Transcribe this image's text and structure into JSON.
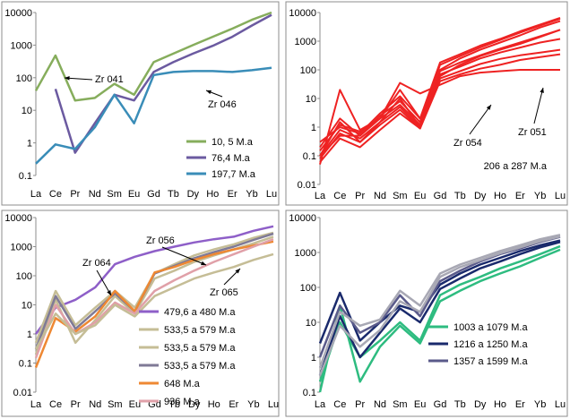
{
  "chart_data": [
    {
      "type": "line",
      "panel": "top-left",
      "title": "",
      "xlabel": "",
      "ylabel": "",
      "yscale": "log",
      "ylim": [
        0.1,
        10000
      ],
      "y_tick_labels": [
        "0.1",
        "1",
        "10",
        "100",
        "1000",
        "10000"
      ],
      "categories": [
        "La",
        "Ce",
        "Pr",
        "Nd",
        "Sm",
        "Eu",
        "Gd",
        "Tb",
        "Dy",
        "Ho",
        "Er",
        "Yb",
        "Lu"
      ],
      "legend_position": "bottom-right",
      "series": [
        {
          "name": "10, 5 M.a",
          "color": "#86ad5c",
          "values": [
            40,
            480,
            20,
            24,
            65,
            30,
            300,
            550,
            1000,
            1800,
            3200,
            6000,
            10000
          ]
        },
        {
          "name": "76,4 M.a",
          "color": "#6b5aa0",
          "values": [
            null,
            45,
            0.5,
            4,
            30,
            20,
            150,
            300,
            550,
            950,
            1800,
            4000,
            8500
          ]
        },
        {
          "name": "197,7 M.a",
          "color": "#3a8db8",
          "values": [
            0.23,
            0.9,
            0.65,
            3,
            30,
            4,
            120,
            150,
            160,
            160,
            150,
            170,
            200
          ]
        }
      ],
      "annotations": [
        "Zr 041",
        "Zr 046"
      ]
    },
    {
      "type": "line",
      "panel": "top-right",
      "title": "",
      "yscale": "log",
      "ylim": [
        0.01,
        10000
      ],
      "y_tick_labels": [
        "0.01",
        "0.1",
        "1",
        "10",
        "100",
        "1000",
        "10000"
      ],
      "categories": [
        "La",
        "Ce",
        "Pr",
        "Nd",
        "Sm",
        "Eu",
        "Gd",
        "Tb",
        "Dy",
        "Ho",
        "Er",
        "Yb",
        "Lu"
      ],
      "caption": "206 a 287 M.a",
      "series": [
        {
          "name": "",
          "color": "#ee2222",
          "values": [
            0.05,
            20,
            0.8,
            2,
            20,
            2,
            60,
            150,
            300,
            500,
            800,
            1400,
            2500
          ]
        },
        {
          "name": "",
          "color": "#ee2222",
          "values": [
            0.1,
            1.5,
            0.3,
            1.5,
            10,
            1,
            100,
            250,
            500,
            900,
            1600,
            3000,
            5000
          ]
        },
        {
          "name": "",
          "color": "#ee2222",
          "values": [
            0.2,
            2,
            0.5,
            2.5,
            8,
            1.5,
            150,
            300,
            600,
            1100,
            2000,
            3500,
            6000
          ]
        },
        {
          "name": "",
          "color": "#ee2222",
          "values": [
            0.3,
            1,
            0.6,
            3,
            12,
            2,
            180,
            350,
            700,
            1200,
            2200,
            3800,
            6500
          ]
        },
        {
          "name": "",
          "color": "#ee2222",
          "values": [
            0.15,
            1.2,
            0.7,
            2,
            6,
            1.2,
            90,
            180,
            320,
            550,
            900,
            1500,
            2500
          ]
        },
        {
          "name": "",
          "color": "#ee2222",
          "values": [
            0.1,
            0.8,
            0.4,
            1.5,
            5,
            1,
            70,
            130,
            250,
            400,
            600,
            900,
            1200
          ]
        },
        {
          "name": "",
          "color": "#ee2222",
          "values": [
            0.08,
            0.6,
            0.3,
            1.2,
            4,
            0.9,
            50,
            90,
            160,
            240,
            320,
            400,
            500
          ]
        },
        {
          "name": "",
          "color": "#ee2222",
          "values": [
            0.06,
            0.4,
            0.2,
            0.8,
            3,
            0.9,
            40,
            70,
            110,
            150,
            220,
            280,
            350
          ]
        },
        {
          "name": "",
          "color": "#ee2222",
          "values": [
            0.1,
            0.5,
            0.5,
            2,
            35,
            15,
            30,
            60,
            80,
            90,
            100,
            100,
            100
          ]
        }
      ],
      "annotations": [
        "Zr 054",
        "Zr 051"
      ]
    },
    {
      "type": "line",
      "panel": "bottom-left",
      "title": "",
      "yscale": "log",
      "ylim": [
        0.01,
        10000
      ],
      "y_tick_labels": [
        "0.01",
        "0.1",
        "1",
        "10",
        "100",
        "1000",
        "10000"
      ],
      "categories": [
        "La",
        "Ce",
        "Pr",
        "Nd",
        "Sm",
        "Eu",
        "Gd",
        "Tb",
        "Dy",
        "Ho",
        "Er",
        "Yb",
        "Lu"
      ],
      "legend_position": "bottom-right",
      "series": [
        {
          "name": "479,6 a 480 M.a",
          "color": "#8e5fc8",
          "values": [
            1,
            8,
            15,
            40,
            250,
            450,
            700,
            1000,
            1400,
            1800,
            2200,
            3500,
            5000
          ]
        },
        {
          "name": "533,5 a 579 M.a",
          "color": "#c5bd96",
          "values": [
            0.5,
            30,
            2,
            8,
            30,
            8,
            120,
            250,
            500,
            800,
            1200,
            2000,
            3000
          ]
        },
        {
          "name": "533,5 a 579 M.a",
          "color": "#c5bd96",
          "values": [
            0.2,
            15,
            0.5,
            3,
            20,
            5,
            80,
            150,
            300,
            500,
            800,
            1300,
            2200
          ]
        },
        {
          "name": "533,5 a 579 M.a",
          "color": "#7f7a96",
          "values": [
            0.3,
            20,
            1.5,
            6,
            25,
            6,
            120,
            220,
            400,
            650,
            1000,
            1700,
            2800
          ]
        },
        {
          "name": "648 M.a",
          "color": "#ee8833",
          "values": [
            0.07,
            3.5,
            1.2,
            4,
            30,
            6,
            130,
            200,
            350,
            550,
            800,
            1100,
            1500
          ]
        },
        {
          "name": "936 M.a",
          "color": "#e0a0a8",
          "values": [
            0.15,
            10,
            1,
            2.5,
            12,
            5,
            30,
            70,
            150,
            300,
            550,
            1000,
            1800
          ]
        },
        {
          "name": "",
          "color": "#c5bd96",
          "values": [
            0.3,
            5,
            1,
            2,
            10,
            4,
            20,
            40,
            80,
            130,
            200,
            350,
            550
          ]
        }
      ],
      "annotations": [
        "Zr 056",
        "Zr 064",
        "Zr 065"
      ]
    },
    {
      "type": "line",
      "panel": "bottom-right",
      "title": "",
      "yscale": "log",
      "ylim": [
        0.1,
        10000
      ],
      "y_tick_labels": [
        "0.1",
        "1",
        "10",
        "100",
        "1000",
        "10000"
      ],
      "categories": [
        "La",
        "Ce",
        "Pr",
        "Nd",
        "Sm",
        "Eu",
        "Gd",
        "Tb",
        "Dy",
        "Ho",
        "Er",
        "Yb",
        "Lu"
      ],
      "legend_position": "bottom-right",
      "series": [
        {
          "name": "1003 a 1079 M.a",
          "color": "#2ebc80",
          "values": [
            0.1,
            30,
            0.2,
            2,
            8,
            2.5,
            40,
            80,
            150,
            250,
            400,
            700,
            1200
          ]
        },
        {
          "name": "",
          "color": "#2ebc80",
          "values": [
            0.2,
            10,
            1,
            3,
            10,
            3,
            60,
            120,
            200,
            350,
            550,
            900,
            1500
          ]
        },
        {
          "name": "1216 a 1250 M.a",
          "color": "#1a2a6c",
          "values": [
            2.5,
            70,
            3,
            10,
            30,
            20,
            120,
            250,
            450,
            700,
            1100,
            1600,
            2200
          ]
        },
        {
          "name": "",
          "color": "#1a2a6c",
          "values": [
            0.3,
            15,
            1,
            5,
            25,
            10,
            90,
            180,
            350,
            550,
            900,
            1400,
            2000
          ]
        },
        {
          "name": "1357 a 1599 M.a",
          "color": "#5a5a8a",
          "values": [
            1,
            30,
            5,
            10,
            60,
            15,
            150,
            300,
            550,
            900,
            1300,
            2000,
            2800
          ]
        },
        {
          "name": "",
          "color": "#a8a8b4",
          "values": [
            0.5,
            20,
            8,
            12,
            80,
            30,
            250,
            450,
            700,
            1100,
            1600,
            2400,
            3200
          ]
        },
        {
          "name": "",
          "color": "#a8a8b4",
          "values": [
            0.3,
            8,
            2,
            6,
            40,
            20,
            200,
            380,
            600,
            950,
            1400,
            2100,
            2900
          ]
        }
      ]
    }
  ]
}
